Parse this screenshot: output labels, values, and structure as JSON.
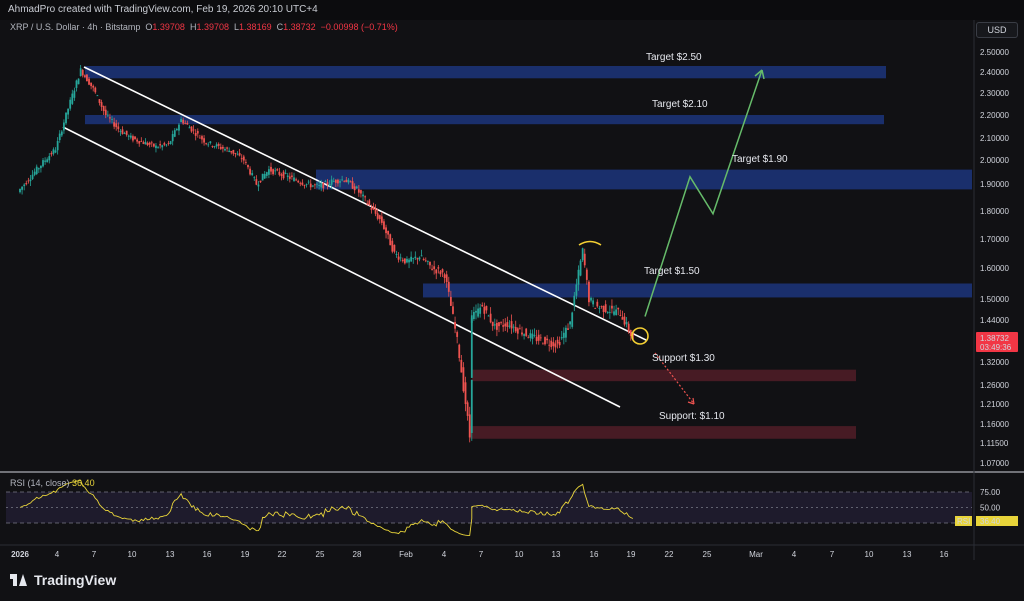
{
  "header": {
    "credit": "AhmadPro created with TradingView.com, Feb 19, 2026 20:10 UTC+4",
    "currency_button": "USD",
    "symbol": "XRP / U.S. Dollar · 4h · Bitstamp",
    "ohlc": {
      "o_label": "O",
      "o": "1.39708",
      "h_label": "H",
      "h": "1.39708",
      "l_label": "L",
      "l": "1.38169",
      "c_label": "C",
      "c": "1.38732",
      "change": "−0.00998 (−0.71%)"
    }
  },
  "last_price": {
    "value": "1.38732",
    "countdown": "03:49:36",
    "color": "#f23645"
  },
  "rsi": {
    "title": "RSI (14, close)",
    "value": "36.40",
    "badge_label": "RSI",
    "levels": [
      75,
      50,
      25
    ],
    "axis_labels": [
      "75.00",
      "50.00",
      "25.00"
    ]
  },
  "branding": {
    "name": "TradingView"
  },
  "chart_data": {
    "type": "line",
    "title": "",
    "xlabel": "",
    "ylabel": "",
    "ylim": [
      1.04,
      2.54
    ],
    "y_tick_labels": [
      "2.50000",
      "2.40000",
      "2.30000",
      "2.20000",
      "2.10000",
      "2.00000",
      "1.90000",
      "1.80000",
      "1.70000",
      "1.60000",
      "1.50000",
      "1.44000",
      "1.32000",
      "1.26000",
      "1.21000",
      "1.16000",
      "1.11500",
      "1.07000"
    ],
    "x_tick_labels": [
      "2026",
      "4",
      "7",
      "10",
      "13",
      "16",
      "19",
      "22",
      "25",
      "28",
      "Feb",
      "4",
      "7",
      "10",
      "13",
      "16",
      "19",
      "22",
      "25",
      "Mar",
      "4",
      "7",
      "10",
      "13",
      "16"
    ],
    "grid": false,
    "colors": {
      "up": "#26a69a",
      "down": "#ef5350",
      "zone_target": "#1e3a8a",
      "zone_support": "#5a1f2a",
      "projection": "#66bb6a",
      "rsi": "#e8d43a"
    },
    "series": [
      {
        "name": "XRP / U.S. Dollar",
        "price_points": [
          [
            "2026",
            1.87
          ],
          [
            "4",
            2.05
          ],
          [
            "6",
            2.41
          ],
          [
            "7",
            2.32
          ],
          [
            "8",
            2.2
          ],
          [
            "9",
            2.14
          ],
          [
            "10",
            2.1
          ],
          [
            "11",
            2.08
          ],
          [
            "12",
            2.06
          ],
          [
            "13",
            2.07
          ],
          [
            "14",
            2.18
          ],
          [
            "15",
            2.13
          ],
          [
            "16",
            2.08
          ],
          [
            "17",
            2.06
          ],
          [
            "18",
            2.04
          ],
          [
            "19",
            2.0
          ],
          [
            "20",
            1.9
          ],
          [
            "21",
            1.96
          ],
          [
            "22",
            1.94
          ],
          [
            "23",
            1.92
          ],
          [
            "24",
            1.9
          ],
          [
            "25",
            1.89
          ],
          [
            "26",
            1.91
          ],
          [
            "27",
            1.92
          ],
          [
            "28",
            1.88
          ],
          [
            "29",
            1.82
          ],
          [
            "30",
            1.76
          ],
          [
            "31",
            1.65
          ],
          [
            "Feb",
            1.62
          ],
          [
            "2",
            1.64
          ],
          [
            "3",
            1.6
          ],
          [
            "4",
            1.58
          ],
          [
            "5",
            1.38
          ],
          [
            "6",
            1.13
          ],
          [
            "6.5",
            1.44
          ],
          [
            "7",
            1.48
          ],
          [
            "8",
            1.42
          ],
          [
            "9",
            1.43
          ],
          [
            "10",
            1.41
          ],
          [
            "11",
            1.39
          ],
          [
            "12",
            1.38
          ],
          [
            "13",
            1.37
          ],
          [
            "14",
            1.43
          ],
          [
            "15",
            1.66
          ],
          [
            "15.5",
            1.5
          ],
          [
            "16",
            1.48
          ],
          [
            "17",
            1.47
          ],
          [
            "18",
            1.46
          ],
          [
            "19",
            1.38732
          ]
        ]
      }
    ],
    "zones": [
      {
        "kind": "target",
        "from": 2.37,
        "to": 2.43
      },
      {
        "kind": "target",
        "from": 2.16,
        "to": 2.2
      },
      {
        "kind": "target",
        "from": 1.88,
        "to": 1.96
      },
      {
        "kind": "target",
        "from": 1.505,
        "to": 1.55
      },
      {
        "kind": "support",
        "from": 1.27,
        "to": 1.3
      },
      {
        "kind": "support",
        "from": 1.125,
        "to": 1.155
      }
    ],
    "annotations": [
      {
        "text": "Target $2.50"
      },
      {
        "text": "Target $2.10"
      },
      {
        "text": "Target $1.90"
      },
      {
        "text": "Target $1.50"
      },
      {
        "text": "Support $1.30"
      },
      {
        "text": "Support: $1.10"
      }
    ],
    "projection": [
      1.45,
      1.93,
      1.79,
      2.41
    ]
  }
}
